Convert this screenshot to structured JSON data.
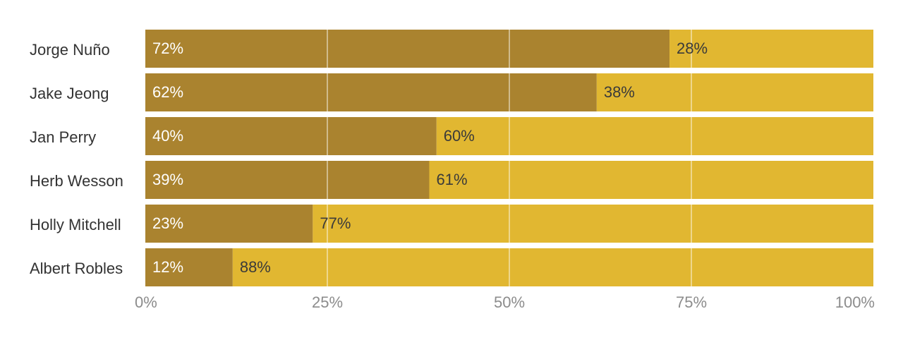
{
  "chart_data": {
    "type": "bar",
    "orientation": "horizontal",
    "stacked": true,
    "categories": [
      "Jorge Nuño",
      "Jake Jeong",
      "Jan Perry",
      "Herb Wesson",
      "Holly Mitchell",
      "Albert Robles"
    ],
    "series": [
      {
        "values": [
          72,
          62,
          40,
          39,
          23,
          12
        ],
        "color": "#aa832f"
      },
      {
        "values": [
          28,
          38,
          60,
          61,
          77,
          88
        ],
        "color": "#e1b731"
      }
    ],
    "value_suffix": "%",
    "xlim": [
      0,
      100
    ],
    "x_ticks": [
      0,
      25,
      50,
      75,
      100
    ],
    "x_tick_labels": [
      "0%",
      "25%",
      "50%",
      "75%",
      "100%"
    ],
    "grid": true,
    "legend": "none"
  }
}
